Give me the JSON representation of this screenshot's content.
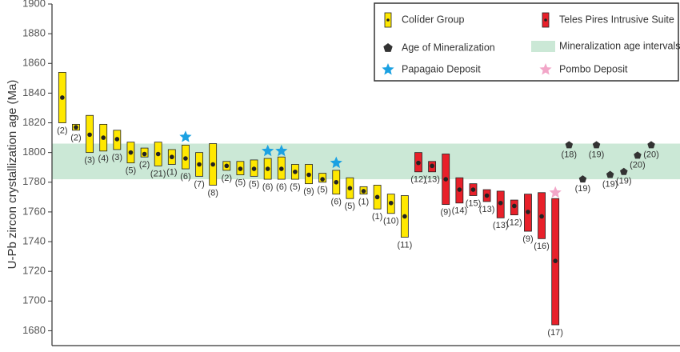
{
  "chart_data": {
    "type": "range",
    "ylabel": "U-Pb zircon crystallization age (Ma)",
    "ylim": [
      1670,
      1900
    ],
    "yticks": [
      1680,
      1700,
      1720,
      1740,
      1760,
      1780,
      1800,
      1820,
      1840,
      1860,
      1880,
      1900
    ],
    "xlim": [
      0.25,
      46.1
    ],
    "band": {
      "name": "Mineralization age intervals",
      "color": "#cbe8d6",
      "range": [
        1782,
        1806
      ]
    },
    "series": [
      {
        "name": "Colíder Group",
        "color": "#ffe800",
        "marker": "bar",
        "items": [
          {
            "x": 1,
            "low": 1820,
            "high": 1854,
            "value": 1837,
            "label": "(2)"
          },
          {
            "x": 2,
            "low": 1815,
            "high": 1819,
            "value": 1817,
            "label": "(2)"
          },
          {
            "x": 3,
            "low": 1800,
            "high": 1825,
            "value": 1812,
            "label": "(3)"
          },
          {
            "x": 4,
            "low": 1801,
            "high": 1819,
            "value": 1810,
            "label": "(4)"
          },
          {
            "x": 5,
            "low": 1802,
            "high": 1815,
            "value": 1809,
            "label": "(3)"
          },
          {
            "x": 6,
            "low": 1793,
            "high": 1807,
            "value": 1800,
            "label": "(5)"
          },
          {
            "x": 7,
            "low": 1797,
            "high": 1803,
            "value": 1799,
            "label": "(2)"
          },
          {
            "x": 8,
            "low": 1791,
            "high": 1807,
            "value": 1799,
            "label": "(21)"
          },
          {
            "x": 9,
            "low": 1792,
            "high": 1802,
            "value": 1797,
            "label": "(1)"
          },
          {
            "x": 10,
            "low": 1789,
            "high": 1805,
            "value": 1796,
            "label": "(6)"
          },
          {
            "x": 11,
            "low": 1784,
            "high": 1800,
            "value": 1792,
            "label": "(7)"
          },
          {
            "x": 12,
            "low": 1778,
            "high": 1806,
            "value": 1792,
            "label": "(8)"
          },
          {
            "x": 13,
            "low": 1788,
            "high": 1794,
            "value": 1791,
            "label": "(2)"
          },
          {
            "x": 14,
            "low": 1785,
            "high": 1794,
            "value": 1789,
            "label": "(5)"
          },
          {
            "x": 15,
            "low": 1784,
            "high": 1795,
            "value": 1789,
            "label": "(5)"
          },
          {
            "x": 16,
            "low": 1782,
            "high": 1796,
            "value": 1789,
            "label": "(6)"
          },
          {
            "x": 17,
            "low": 1782,
            "high": 1797,
            "value": 1789,
            "label": "(6)"
          },
          {
            "x": 18,
            "low": 1782,
            "high": 1792,
            "value": 1787,
            "label": "(5)"
          },
          {
            "x": 19,
            "low": 1779,
            "high": 1792,
            "value": 1785,
            "label": "(9)"
          },
          {
            "x": 20,
            "low": 1780,
            "high": 1786,
            "value": 1782,
            "label": "(5)"
          },
          {
            "x": 21,
            "low": 1772,
            "high": 1788,
            "value": 1780,
            "label": "(6)"
          },
          {
            "x": 22,
            "low": 1769,
            "high": 1783,
            "value": 1776,
            "label": "(5)"
          },
          {
            "x": 23,
            "low": 1772,
            "high": 1777,
            "value": 1774,
            "label": "(1)"
          },
          {
            "x": 24,
            "low": 1762,
            "high": 1778,
            "value": 1770,
            "label": "(1)"
          },
          {
            "x": 25,
            "low": 1759,
            "high": 1772,
            "value": 1766,
            "label": "(10)"
          },
          {
            "x": 26,
            "low": 1743,
            "high": 1771,
            "value": 1757,
            "label": "(11)"
          }
        ]
      },
      {
        "name": "Teles Pires Intrusive Suite",
        "color": "#e8202a",
        "marker": "bar",
        "items": [
          {
            "x": 27,
            "low": 1787,
            "high": 1800,
            "value": 1793,
            "label": "(12)"
          },
          {
            "x": 28,
            "low": 1787,
            "high": 1794,
            "value": 1791,
            "label": "(13)"
          },
          {
            "x": 29,
            "low": 1765,
            "high": 1799,
            "value": 1782,
            "label": "(9)"
          },
          {
            "x": 30,
            "low": 1766,
            "high": 1783,
            "value": 1775,
            "label": "(14)"
          },
          {
            "x": 31,
            "low": 1771,
            "high": 1779,
            "value": 1775,
            "label": "(15)"
          },
          {
            "x": 32,
            "low": 1767,
            "high": 1775,
            "value": 1771,
            "label": "(13)"
          },
          {
            "x": 33,
            "low": 1756,
            "high": 1774,
            "value": 1766,
            "label": "(13)"
          },
          {
            "x": 34,
            "low": 1758,
            "high": 1768,
            "value": 1764,
            "label": "(12)"
          },
          {
            "x": 35,
            "low": 1747,
            "high": 1772,
            "value": 1760,
            "label": "(9)"
          },
          {
            "x": 36,
            "low": 1742,
            "high": 1773,
            "value": 1757,
            "label": "(16)"
          },
          {
            "x": 37,
            "low": 1684,
            "high": 1769,
            "value": 1727,
            "label": "(17)"
          }
        ]
      },
      {
        "name": "Age of Mineralization",
        "color": "#333333",
        "marker": "pentagon",
        "items": [
          {
            "x": 38,
            "value": 1805,
            "label": "(18)"
          },
          {
            "x": 39,
            "value": 1782,
            "label": "(19)"
          },
          {
            "x": 40,
            "value": 1805,
            "label": "(19)"
          },
          {
            "x": 41,
            "value": 1785,
            "label": "(19)"
          },
          {
            "x": 42,
            "value": 1787,
            "label": "(19)"
          },
          {
            "x": 43,
            "value": 1798,
            "label": "(20)"
          },
          {
            "x": 44,
            "value": 1805,
            "label": "(20)"
          }
        ]
      },
      {
        "name": "Papagaio Deposit",
        "color": "#1ba1e2",
        "marker": "star",
        "items": [
          {
            "x": 10,
            "value": 1810.5
          },
          {
            "x": 16,
            "value": 1801
          },
          {
            "x": 17,
            "value": 1801
          },
          {
            "x": 21,
            "value": 1793
          }
        ]
      },
      {
        "name": "Pombo Deposit",
        "color": "#f2a6c8",
        "marker": "star",
        "items": [
          {
            "x": 37,
            "value": 1773
          }
        ]
      }
    ]
  }
}
